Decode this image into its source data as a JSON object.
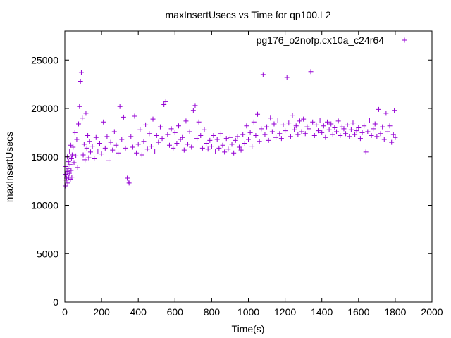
{
  "colors": {
    "series": "#9400d3",
    "axis": "#000000",
    "background": "#ffffff"
  },
  "chart_data": {
    "type": "scatter",
    "title": "maxInsertUsecs vs Time for qp100.L2",
    "xlabel": "Time(s)",
    "ylabel": "maxInsertUsecs",
    "xlim": [
      0,
      2000
    ],
    "ylim": [
      0,
      28000
    ],
    "x_ticks": [
      0,
      200,
      400,
      600,
      800,
      1000,
      1200,
      1400,
      1600,
      1800,
      2000
    ],
    "y_ticks": [
      0,
      5000,
      10000,
      15000,
      20000,
      25000
    ],
    "grid": false,
    "legend_position": "top-right",
    "marker": "plus",
    "series": [
      {
        "name": "pg176_o2nofp.cx10a_c24r64",
        "points": [
          [
            2,
            12000
          ],
          [
            4,
            13200
          ],
          [
            6,
            14000
          ],
          [
            8,
            12600
          ],
          [
            10,
            12800
          ],
          [
            12,
            13500
          ],
          [
            14,
            15000
          ],
          [
            16,
            12300
          ],
          [
            18,
            13800
          ],
          [
            20,
            14500
          ],
          [
            22,
            12900
          ],
          [
            24,
            13300
          ],
          [
            26,
            15600
          ],
          [
            28,
            14200
          ],
          [
            30,
            12700
          ],
          [
            32,
            16200
          ],
          [
            34,
            13600
          ],
          [
            36,
            14800
          ],
          [
            38,
            12900
          ],
          [
            40,
            15200
          ],
          [
            45,
            16000
          ],
          [
            50,
            14400
          ],
          [
            55,
            17500
          ],
          [
            60,
            15100
          ],
          [
            65,
            16800
          ],
          [
            70,
            13900
          ],
          [
            75,
            18400
          ],
          [
            80,
            20200
          ],
          [
            85,
            22800
          ],
          [
            90,
            23700
          ],
          [
            95,
            19000
          ],
          [
            100,
            15200
          ],
          [
            105,
            16300
          ],
          [
            110,
            14700
          ],
          [
            115,
            19500
          ],
          [
            120,
            15900
          ],
          [
            125,
            17200
          ],
          [
            130,
            14900
          ],
          [
            135,
            16600
          ],
          [
            140,
            15500
          ],
          [
            150,
            16100
          ],
          [
            160,
            14800
          ],
          [
            170,
            17000
          ],
          [
            180,
            15600
          ],
          [
            190,
            16400
          ],
          [
            200,
            15300
          ],
          [
            210,
            18600
          ],
          [
            220,
            15900
          ],
          [
            230,
            17100
          ],
          [
            240,
            14600
          ],
          [
            250,
            16500
          ],
          [
            260,
            15700
          ],
          [
            270,
            17600
          ],
          [
            280,
            16200
          ],
          [
            290,
            15400
          ],
          [
            300,
            20200
          ],
          [
            310,
            16800
          ],
          [
            320,
            19100
          ],
          [
            330,
            15900
          ],
          [
            340,
            12800
          ],
          [
            345,
            12400
          ],
          [
            350,
            12300
          ],
          [
            360,
            17100
          ],
          [
            370,
            16000
          ],
          [
            380,
            19200
          ],
          [
            390,
            15400
          ],
          [
            400,
            16300
          ],
          [
            410,
            17800
          ],
          [
            420,
            15200
          ],
          [
            430,
            16600
          ],
          [
            440,
            18300
          ],
          [
            450,
            15800
          ],
          [
            460,
            17400
          ],
          [
            470,
            16100
          ],
          [
            480,
            18900
          ],
          [
            490,
            15600
          ],
          [
            500,
            17200
          ],
          [
            510,
            16500
          ],
          [
            520,
            18100
          ],
          [
            530,
            16900
          ],
          [
            540,
            20400
          ],
          [
            550,
            20700
          ],
          [
            560,
            17300
          ],
          [
            570,
            16200
          ],
          [
            580,
            17900
          ],
          [
            590,
            15900
          ],
          [
            600,
            17500
          ],
          [
            610,
            16400
          ],
          [
            620,
            18200
          ],
          [
            630,
            16800
          ],
          [
            640,
            17000
          ],
          [
            650,
            15700
          ],
          [
            660,
            18700
          ],
          [
            670,
            16300
          ],
          [
            680,
            17600
          ],
          [
            690,
            16000
          ],
          [
            700,
            19800
          ],
          [
            710,
            20300
          ],
          [
            720,
            16900
          ],
          [
            730,
            18600
          ],
          [
            740,
            17200
          ],
          [
            750,
            15900
          ],
          [
            760,
            17800
          ],
          [
            770,
            16400
          ],
          [
            780,
            15800
          ],
          [
            790,
            16700
          ],
          [
            800,
            16100
          ],
          [
            810,
            17200
          ],
          [
            820,
            15600
          ],
          [
            830,
            16800
          ],
          [
            840,
            15900
          ],
          [
            850,
            17400
          ],
          [
            860,
            16200
          ],
          [
            870,
            15500
          ],
          [
            880,
            16900
          ],
          [
            890,
            15800
          ],
          [
            900,
            17000
          ],
          [
            910,
            16300
          ],
          [
            920,
            15400
          ],
          [
            930,
            16700
          ],
          [
            940,
            17100
          ],
          [
            950,
            16000
          ],
          [
            960,
            15700
          ],
          [
            970,
            17300
          ],
          [
            980,
            16400
          ],
          [
            990,
            18200
          ],
          [
            1000,
            16800
          ],
          [
            1010,
            17500
          ],
          [
            1020,
            16100
          ],
          [
            1030,
            18600
          ],
          [
            1040,
            17200
          ],
          [
            1050,
            19400
          ],
          [
            1060,
            16600
          ],
          [
            1070,
            17900
          ],
          [
            1080,
            23500
          ],
          [
            1090,
            17300
          ],
          [
            1100,
            18100
          ],
          [
            1110,
            16700
          ],
          [
            1120,
            19000
          ],
          [
            1130,
            17600
          ],
          [
            1140,
            18400
          ],
          [
            1150,
            17000
          ],
          [
            1160,
            18800
          ],
          [
            1170,
            17400
          ],
          [
            1180,
            16900
          ],
          [
            1190,
            18300
          ],
          [
            1200,
            17700
          ],
          [
            1210,
            23200
          ],
          [
            1220,
            18500
          ],
          [
            1230,
            17100
          ],
          [
            1240,
            19300
          ],
          [
            1250,
            17800
          ],
          [
            1260,
            18200
          ],
          [
            1270,
            17300
          ],
          [
            1280,
            18700
          ],
          [
            1290,
            17600
          ],
          [
            1300,
            18900
          ],
          [
            1310,
            17400
          ],
          [
            1320,
            18100
          ],
          [
            1330,
            17900
          ],
          [
            1340,
            23800
          ],
          [
            1350,
            18600
          ],
          [
            1360,
            17200
          ],
          [
            1370,
            18300
          ],
          [
            1380,
            17700
          ],
          [
            1390,
            18800
          ],
          [
            1400,
            17500
          ],
          [
            1410,
            18200
          ],
          [
            1420,
            17000
          ],
          [
            1430,
            18600
          ],
          [
            1440,
            17800
          ],
          [
            1450,
            18400
          ],
          [
            1460,
            17300
          ],
          [
            1470,
            18000
          ],
          [
            1480,
            17600
          ],
          [
            1490,
            18700
          ],
          [
            1500,
            17200
          ],
          [
            1510,
            18100
          ],
          [
            1520,
            17900
          ],
          [
            1530,
            17400
          ],
          [
            1540,
            18300
          ],
          [
            1550,
            17100
          ],
          [
            1560,
            17800
          ],
          [
            1570,
            18500
          ],
          [
            1580,
            17300
          ],
          [
            1590,
            17700
          ],
          [
            1600,
            18000
          ],
          [
            1610,
            16900
          ],
          [
            1620,
            17500
          ],
          [
            1630,
            18200
          ],
          [
            1640,
            15500
          ],
          [
            1650,
            17600
          ],
          [
            1660,
            18800
          ],
          [
            1670,
            17200
          ],
          [
            1680,
            17900
          ],
          [
            1690,
            18400
          ],
          [
            1700,
            17100
          ],
          [
            1710,
            19900
          ],
          [
            1720,
            17400
          ],
          [
            1730,
            18100
          ],
          [
            1740,
            16800
          ],
          [
            1750,
            19500
          ],
          [
            1760,
            17600
          ],
          [
            1770,
            18200
          ],
          [
            1780,
            16500
          ],
          [
            1790,
            17300
          ],
          [
            1795,
            19800
          ],
          [
            1800,
            17000
          ]
        ]
      }
    ]
  }
}
